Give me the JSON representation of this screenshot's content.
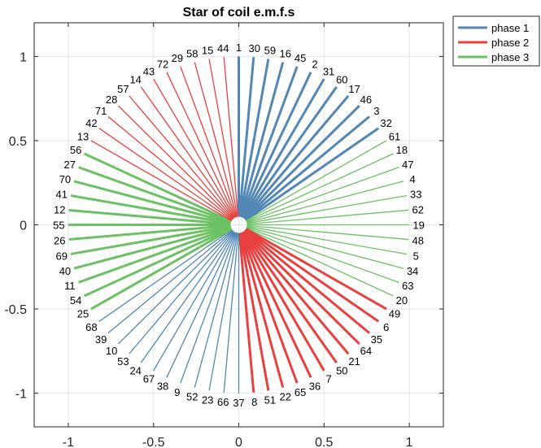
{
  "chart_data": {
    "type": "line",
    "title": "Star of coil e.m.f.s",
    "xlabel": "",
    "ylabel": "",
    "xlim": [
      -1.2,
      1.2
    ],
    "ylim": [
      -1.2,
      1.2
    ],
    "xticks": [
      "-1",
      "-0.5",
      "0",
      "0.5",
      "1"
    ],
    "xtick_values": [
      -1,
      -0.5,
      0,
      0.5,
      1
    ],
    "yticks": [
      "1",
      "0.5",
      "0",
      "-0.5",
      "-1"
    ],
    "ytick_values": [
      1,
      0.5,
      0,
      -0.5,
      -1
    ],
    "grid": true,
    "legend_placement": "outside-top-right",
    "vector_magnitude": 1,
    "angle_step_deg": 5,
    "start_angle_deg": 90,
    "direction": "clockwise",
    "series": [
      {
        "name": "phase 1",
        "color": "#5186b5"
      },
      {
        "name": "phase 2",
        "color": "#e8403f"
      },
      {
        "name": "phase 3",
        "color": "#6cc164"
      }
    ],
    "coils_clockwise_from_top": [
      1,
      30,
      59,
      16,
      45,
      2,
      31,
      60,
      17,
      46,
      3,
      32,
      61,
      18,
      47,
      4,
      33,
      62,
      19,
      48,
      5,
      34,
      63,
      20,
      49,
      6,
      35,
      64,
      21,
      50,
      7,
      36,
      65,
      22,
      51,
      8,
      37,
      66,
      23,
      52,
      9,
      38,
      67,
      24,
      53,
      10,
      39,
      68,
      25,
      54,
      11,
      40,
      69,
      26,
      55,
      12,
      41,
      70,
      27,
      56,
      13,
      42,
      71,
      28,
      57,
      14,
      43,
      72,
      29,
      58,
      15,
      44
    ],
    "sector_phases": [
      {
        "phase": "phase 1",
        "polarity": "positive"
      },
      {
        "phase": "phase 3",
        "polarity": "negative"
      },
      {
        "phase": "phase 2",
        "polarity": "positive"
      },
      {
        "phase": "phase 1",
        "polarity": "negative"
      },
      {
        "phase": "phase 3",
        "polarity": "positive"
      },
      {
        "phase": "phase 2",
        "polarity": "negative"
      }
    ]
  }
}
